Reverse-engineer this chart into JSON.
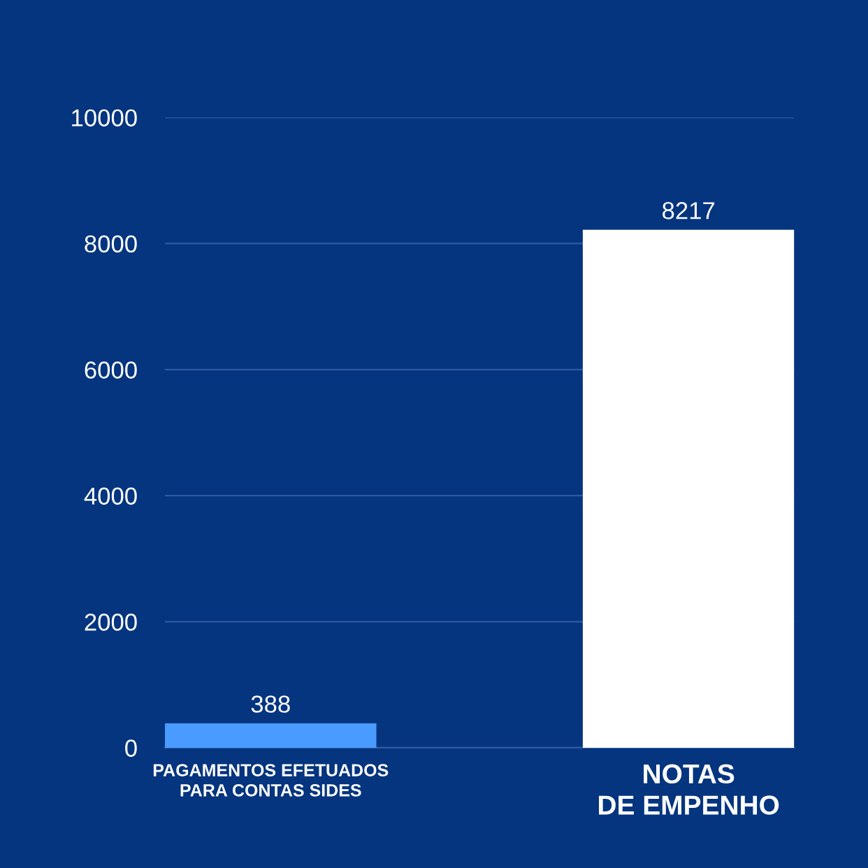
{
  "chart_data": {
    "type": "bar",
    "categories": [
      "PAGAMENTOS EFETUADOS\nPARA CONTAS SIDES",
      "NOTAS\nDE EMPENHO"
    ],
    "values": [
      388,
      8217
    ],
    "colors": [
      "#4a9bff",
      "#ffffff"
    ],
    "ylim": [
      0,
      10000
    ],
    "yticks": [
      0,
      2000,
      4000,
      6000,
      8000,
      10000
    ],
    "grid": "y",
    "data_labels": true
  }
}
